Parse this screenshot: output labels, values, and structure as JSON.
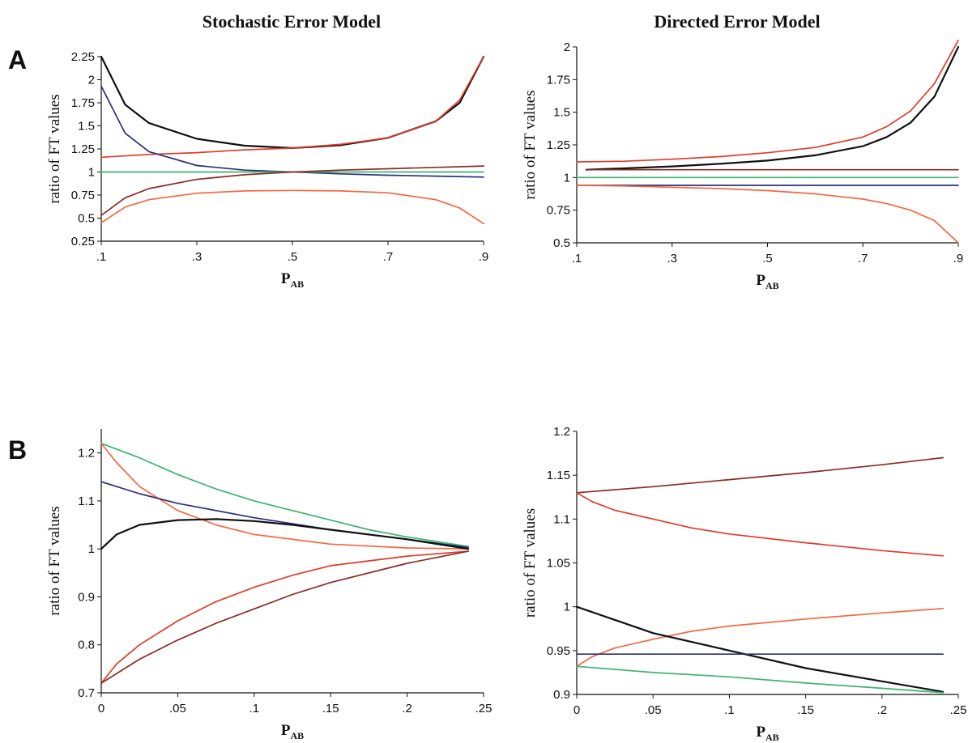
{
  "titles": {
    "left": "Stochastic Error Model",
    "right": "Directed Error Model"
  },
  "row_labels": {
    "a": "A",
    "b": "B"
  },
  "colors": {
    "black": "#111111",
    "red": "#e03b2a",
    "orange": "#f4683e",
    "darkred": "#8a2a25",
    "green": "#3cb371",
    "navy": "#2b2f7a"
  },
  "chart_data": [
    {
      "panel": "A-left",
      "type": "line",
      "title": "Stochastic Error Model",
      "ylabel": "ratio of FT values",
      "xlabel": "P",
      "xlabel_sub": "AB",
      "xlim": [
        0.1,
        0.9
      ],
      "ylim": [
        0.25,
        2.25
      ],
      "xticks": [
        0.1,
        0.3,
        0.5,
        0.7,
        0.9
      ],
      "xtick_labels": [
        ".1",
        ".3",
        ".5",
        ".7",
        ".9"
      ],
      "yticks": [
        0.25,
        0.5,
        0.75,
        1,
        1.25,
        1.5,
        1.75,
        2,
        2.25
      ],
      "ytick_labels": [
        "0.25",
        "0.5",
        "0.75",
        "1",
        "1.25",
        "1.5",
        "1.75",
        "2",
        "2.25"
      ],
      "series": [
        {
          "color": "black",
          "x": [
            0.1,
            0.15,
            0.2,
            0.3,
            0.4,
            0.5,
            0.6,
            0.7,
            0.8,
            0.85,
            0.9
          ],
          "y": [
            2.25,
            1.73,
            1.53,
            1.36,
            1.285,
            1.26,
            1.29,
            1.37,
            1.55,
            1.75,
            2.25
          ]
        },
        {
          "color": "red",
          "x": [
            0.1,
            0.2,
            0.3,
            0.4,
            0.5,
            0.6,
            0.7,
            0.8,
            0.85,
            0.9
          ],
          "y": [
            1.16,
            1.19,
            1.21,
            1.24,
            1.26,
            1.3,
            1.37,
            1.55,
            1.78,
            2.25
          ]
        },
        {
          "color": "navy",
          "x": [
            0.1,
            0.15,
            0.2,
            0.3,
            0.4,
            0.5,
            0.6,
            0.7,
            0.8,
            0.9
          ],
          "y": [
            1.93,
            1.42,
            1.22,
            1.07,
            1.02,
            1.0,
            0.98,
            0.965,
            0.955,
            0.945
          ]
        },
        {
          "color": "green",
          "x": [
            0.1,
            0.9
          ],
          "y": [
            1.0,
            1.0
          ]
        },
        {
          "color": "darkred",
          "x": [
            0.1,
            0.15,
            0.2,
            0.3,
            0.4,
            0.5,
            0.6,
            0.7,
            0.8,
            0.9
          ],
          "y": [
            0.53,
            0.72,
            0.82,
            0.92,
            0.97,
            1.0,
            1.02,
            1.035,
            1.05,
            1.065
          ]
        },
        {
          "color": "orange",
          "x": [
            0.1,
            0.15,
            0.2,
            0.3,
            0.4,
            0.5,
            0.6,
            0.7,
            0.8,
            0.85,
            0.9
          ],
          "y": [
            0.45,
            0.62,
            0.7,
            0.77,
            0.795,
            0.8,
            0.795,
            0.775,
            0.7,
            0.61,
            0.44
          ]
        }
      ]
    },
    {
      "panel": "A-right",
      "type": "line",
      "title": "Directed Error Model",
      "ylabel": "ratio of FT values",
      "xlabel": "P",
      "xlabel_sub": "AB",
      "xlim": [
        0.1,
        0.9
      ],
      "ylim": [
        0.5,
        2.0
      ],
      "xticks": [
        0.1,
        0.3,
        0.5,
        0.7,
        0.9
      ],
      "xtick_labels": [
        ".1",
        ".3",
        ".5",
        ".7",
        ".9"
      ],
      "yticks": [
        0.5,
        0.75,
        1,
        1.25,
        1.5,
        1.75,
        2
      ],
      "ytick_labels": [
        "0.5",
        "0.75",
        "1",
        "1.25",
        "1.5",
        "1.75",
        "2"
      ],
      "series": [
        {
          "color": "red",
          "x": [
            0.1,
            0.2,
            0.3,
            0.4,
            0.5,
            0.6,
            0.7,
            0.75,
            0.8,
            0.85,
            0.9
          ],
          "y": [
            1.12,
            1.125,
            1.14,
            1.16,
            1.19,
            1.23,
            1.31,
            1.39,
            1.51,
            1.72,
            2.05
          ]
        },
        {
          "color": "black",
          "x": [
            0.12,
            0.2,
            0.3,
            0.4,
            0.5,
            0.6,
            0.7,
            0.75,
            0.8,
            0.85,
            0.9
          ],
          "y": [
            1.06,
            1.07,
            1.085,
            1.105,
            1.13,
            1.17,
            1.24,
            1.31,
            1.42,
            1.62,
            2.0
          ]
        },
        {
          "color": "darkred",
          "x": [
            0.12,
            0.9
          ],
          "y": [
            1.06,
            1.06
          ]
        },
        {
          "color": "green",
          "x": [
            0.1,
            0.9
          ],
          "y": [
            1.0,
            1.0
          ]
        },
        {
          "color": "navy",
          "x": [
            0.1,
            0.9
          ],
          "y": [
            0.94,
            0.94
          ]
        },
        {
          "color": "orange",
          "x": [
            0.1,
            0.2,
            0.3,
            0.4,
            0.5,
            0.6,
            0.7,
            0.75,
            0.8,
            0.85,
            0.9
          ],
          "y": [
            0.94,
            0.935,
            0.925,
            0.915,
            0.9,
            0.875,
            0.835,
            0.8,
            0.75,
            0.67,
            0.5
          ]
        }
      ]
    },
    {
      "panel": "B-left",
      "type": "line",
      "title": "",
      "ylabel": "ratio of FT values",
      "xlabel": "P",
      "xlabel_sub": "AB",
      "xlim": [
        0,
        0.25
      ],
      "ylim": [
        0.7,
        1.25
      ],
      "xticks": [
        0,
        0.05,
        0.1,
        0.15,
        0.2,
        0.25
      ],
      "xtick_labels": [
        "0",
        ".05",
        ".1",
        ".15",
        ".2",
        ".25"
      ],
      "yticks": [
        0.7,
        0.8,
        0.9,
        1,
        1.1,
        1.2
      ],
      "ytick_labels": [
        "0.7",
        "0.8",
        "0.9",
        "1",
        "1.1",
        "1.2"
      ],
      "series": [
        {
          "color": "green",
          "x": [
            0,
            0.025,
            0.05,
            0.075,
            0.1,
            0.125,
            0.15,
            0.175,
            0.2,
            0.24
          ],
          "y": [
            1.22,
            1.19,
            1.155,
            1.125,
            1.1,
            1.08,
            1.06,
            1.04,
            1.025,
            1.005
          ]
        },
        {
          "color": "orange",
          "x": [
            0,
            0.01,
            0.025,
            0.05,
            0.075,
            0.1,
            0.125,
            0.15,
            0.2,
            0.24
          ],
          "y": [
            1.22,
            1.18,
            1.13,
            1.08,
            1.05,
            1.03,
            1.02,
            1.01,
            1.002,
            1.0
          ]
        },
        {
          "color": "navy",
          "x": [
            0,
            0.025,
            0.05,
            0.1,
            0.15,
            0.2,
            0.24
          ],
          "y": [
            1.14,
            1.115,
            1.095,
            1.065,
            1.04,
            1.02,
            1.003
          ]
        },
        {
          "color": "black",
          "x": [
            0,
            0.01,
            0.025,
            0.05,
            0.075,
            0.1,
            0.125,
            0.15,
            0.2,
            0.24
          ],
          "y": [
            1.0,
            1.03,
            1.05,
            1.06,
            1.062,
            1.058,
            1.05,
            1.04,
            1.02,
            1.0
          ]
        },
        {
          "color": "red",
          "x": [
            0,
            0.01,
            0.025,
            0.05,
            0.075,
            0.1,
            0.125,
            0.15,
            0.2,
            0.24
          ],
          "y": [
            0.72,
            0.76,
            0.8,
            0.85,
            0.89,
            0.92,
            0.945,
            0.965,
            0.985,
            0.995
          ]
        },
        {
          "color": "darkred",
          "x": [
            0,
            0.025,
            0.05,
            0.075,
            0.1,
            0.125,
            0.15,
            0.2,
            0.24
          ],
          "y": [
            0.72,
            0.77,
            0.81,
            0.845,
            0.875,
            0.905,
            0.93,
            0.97,
            0.995
          ]
        }
      ]
    },
    {
      "panel": "B-right",
      "type": "line",
      "title": "",
      "ylabel": "ratio of FT values",
      "xlabel": "P",
      "xlabel_sub": "AB",
      "xlim": [
        0,
        0.25
      ],
      "ylim": [
        0.9,
        1.2
      ],
      "xticks": [
        0,
        0.05,
        0.1,
        0.15,
        0.2,
        0.25
      ],
      "xtick_labels": [
        "0",
        ".05",
        ".1",
        ".15",
        ".2",
        ".25"
      ],
      "yticks": [
        0.9,
        0.95,
        1,
        1.05,
        1.1,
        1.15,
        1.2
      ],
      "ytick_labels": [
        "0.9",
        "0.95",
        "1",
        "1.05",
        "1.1",
        "1.15",
        "1.2"
      ],
      "series": [
        {
          "color": "darkred",
          "x": [
            0,
            0.05,
            0.1,
            0.15,
            0.2,
            0.24
          ],
          "y": [
            1.13,
            1.137,
            1.145,
            1.153,
            1.162,
            1.17
          ]
        },
        {
          "color": "red",
          "x": [
            0,
            0.01,
            0.025,
            0.05,
            0.075,
            0.1,
            0.15,
            0.2,
            0.24
          ],
          "y": [
            1.13,
            1.12,
            1.11,
            1.1,
            1.09,
            1.083,
            1.073,
            1.064,
            1.058
          ]
        },
        {
          "color": "orange",
          "x": [
            0,
            0.01,
            0.025,
            0.05,
            0.075,
            0.1,
            0.15,
            0.2,
            0.24
          ],
          "y": [
            0.932,
            0.943,
            0.953,
            0.963,
            0.972,
            0.978,
            0.986,
            0.993,
            0.998
          ]
        },
        {
          "color": "black",
          "x": [
            0,
            0.05,
            0.1,
            0.15,
            0.2,
            0.24
          ],
          "y": [
            1.0,
            0.97,
            0.95,
            0.93,
            0.915,
            0.903
          ]
        },
        {
          "color": "navy",
          "x": [
            0,
            0.24
          ],
          "y": [
            0.946,
            0.946
          ]
        },
        {
          "color": "green",
          "x": [
            0,
            0.05,
            0.1,
            0.15,
            0.2,
            0.24
          ],
          "y": [
            0.932,
            0.925,
            0.92,
            0.913,
            0.907,
            0.902
          ]
        }
      ]
    }
  ]
}
